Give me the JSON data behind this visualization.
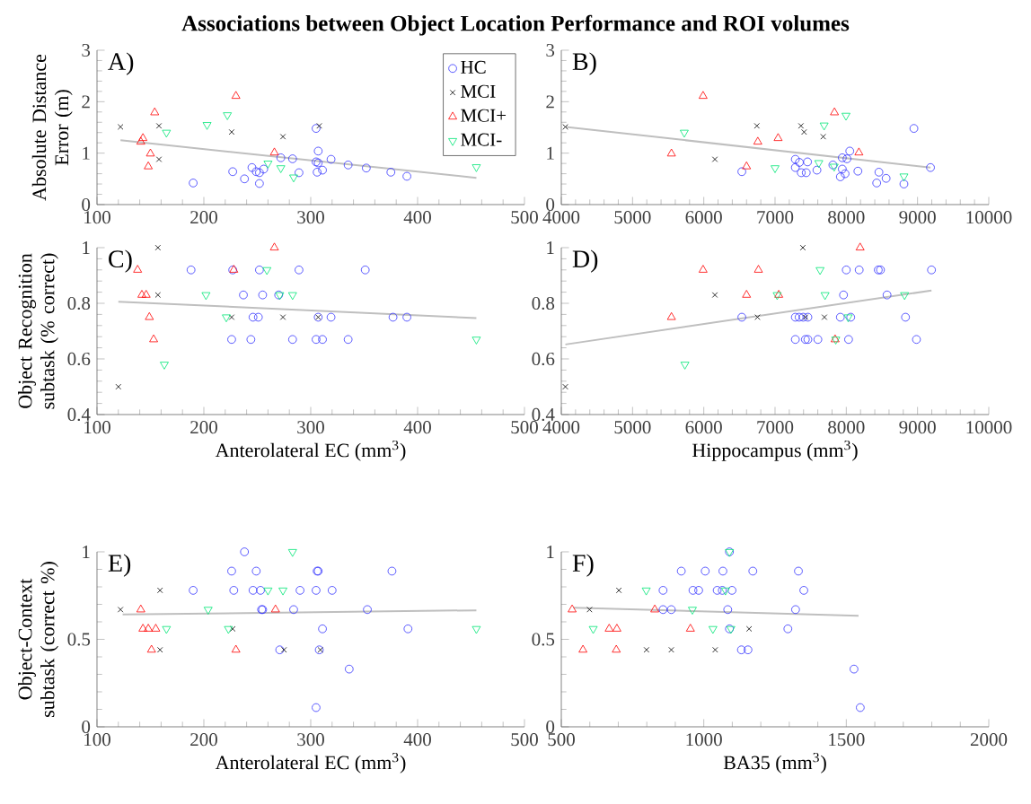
{
  "chart_data": [
    {
      "type": "scatter",
      "title": "Associations between Object Location Performance and ROI volumes",
      "ylabel": "Absolute Distance Error (m)",
      "annotations": [
        "A)"
      ],
      "legend": "top right",
      "xlim": [
        100,
        500
      ],
      "xticks": [
        100,
        200,
        300,
        400,
        500
      ],
      "ylim": [
        0,
        3
      ],
      "yticks": [
        0,
        1,
        2,
        3
      ],
      "series": [
        {
          "name": "HC",
          "color": "#3333ff",
          "marker": "circle",
          "x": [
            190,
            227,
            238,
            245,
            249,
            252,
            252,
            256,
            272,
            283,
            289,
            305,
            307,
            305,
            307,
            306,
            311,
            319,
            335,
            352,
            375,
            390
          ],
          "values": [
            0.42,
            0.64,
            0.5,
            0.72,
            0.64,
            0.41,
            0.62,
            0.69,
            0.91,
            0.89,
            0.62,
            1.48,
            1.04,
            0.83,
            0.81,
            0.63,
            0.67,
            0.88,
            0.77,
            0.71,
            0.63,
            0.55
          ]
        },
        {
          "name": "MCI",
          "color": "#000000",
          "marker": "cross",
          "x": [
            122,
            158,
            158,
            226,
            274,
            308
          ],
          "values": [
            1.51,
            1.53,
            0.88,
            1.41,
            1.32,
            1.53
          ]
        },
        {
          "name": "MCI+",
          "color": "#ff0000",
          "marker": "triangle",
          "x": [
            154,
            143,
            141,
            150,
            148,
            230,
            266
          ],
          "values": [
            1.79,
            1.29,
            1.22,
            0.99,
            0.74,
            2.11,
            1.01
          ]
        },
        {
          "name": "MCI-",
          "color": "#00e676",
          "marker": "triangle down",
          "x": [
            165,
            203,
            222,
            260,
            272,
            284,
            455
          ],
          "values": [
            1.4,
            1.55,
            1.74,
            0.8,
            0.71,
            0.53,
            0.73
          ]
        },
        {
          "type": "line",
          "color": "#bfbfbf",
          "x": [
            122,
            455
          ],
          "values": [
            1.25,
            0.52
          ]
        }
      ]
    },
    {
      "type": "scatter",
      "annotations": [
        "B)"
      ],
      "xlim": [
        4000,
        10000
      ],
      "xticks": [
        4000,
        5000,
        6000,
        7000,
        8000,
        9000,
        10000
      ],
      "ylim": [
        0,
        3
      ],
      "yticks": [
        0,
        1,
        2,
        3
      ],
      "series": [
        {
          "color": "#3333ff",
          "marker": "circle",
          "x": [
            6534,
            7285,
            7285,
            7342,
            7456,
            7368,
            7438,
            7588,
            7812,
            7944,
            8010,
            8049,
            7944,
            7983,
            7917,
            8163,
            8458,
            8427,
            8559,
            8809,
            8949,
            9182
          ],
          "values": [
            0.64,
            0.88,
            0.72,
            0.82,
            0.83,
            0.62,
            0.62,
            0.67,
            0.77,
            0.91,
            0.89,
            1.04,
            0.69,
            0.6,
            0.54,
            0.65,
            0.63,
            0.42,
            0.51,
            0.4,
            1.48,
            0.72
          ]
        },
        {
          "color": "#000000",
          "marker": "cross",
          "x": [
            4057,
            6156,
            6745,
            7364,
            7408,
            7676
          ],
          "values": [
            1.51,
            0.88,
            1.53,
            1.53,
            1.41,
            1.32
          ]
        },
        {
          "color": "#ff0000",
          "marker": "triangle",
          "x": [
            5990,
            5546,
            6600,
            6758,
            7043,
            7834,
            8177
          ],
          "values": [
            2.11,
            0.99,
            0.74,
            1.22,
            1.29,
            1.79,
            1.01
          ]
        },
        {
          "color": "#00e676",
          "marker": "triangle down",
          "x": [
            5726,
            7000,
            7614,
            7689,
            7830,
            7996,
            8809
          ],
          "values": [
            1.4,
            0.71,
            0.81,
            1.54,
            0.74,
            1.73,
            0.55
          ]
        },
        {
          "type": "line",
          "color": "#bfbfbf",
          "x": [
            4066,
            9182
          ],
          "values": [
            1.51,
            0.72
          ]
        }
      ]
    },
    {
      "type": "scatter",
      "xlabel": "Anterolateral EC (mm$^{3}$)",
      "ylabel": "Object Recognition subtask (% correct)",
      "annotations": [
        "C)"
      ],
      "xlim": [
        100,
        500
      ],
      "xticks": [
        100,
        200,
        300,
        400,
        500
      ],
      "ylim": [
        0.4,
        1
      ],
      "yticks": [
        0.4,
        0.6,
        0.8,
        1
      ],
      "series": [
        {
          "color": "#3333ff",
          "marker": "circle",
          "x": [
            188,
            227,
            252,
            289,
            351,
            237,
            255,
            270,
            246,
            251,
            307,
            319,
            377,
            390,
            226,
            244,
            283,
            305,
            311,
            335
          ],
          "values": [
            0.92,
            0.92,
            0.92,
            0.92,
            0.92,
            0.83,
            0.83,
            0.83,
            0.75,
            0.75,
            0.75,
            0.75,
            0.75,
            0.75,
            0.67,
            0.67,
            0.67,
            0.67,
            0.67,
            0.67
          ]
        },
        {
          "color": "#000000",
          "marker": "cross",
          "x": [
            157,
            157,
            226,
            274,
            307,
            120
          ],
          "values": [
            1,
            0.83,
            0.75,
            0.75,
            0.75,
            0.5
          ]
        },
        {
          "color": "#ff0000",
          "marker": "triangle",
          "x": [
            266,
            138,
            228,
            142,
            146,
            149,
            153
          ],
          "values": [
            1,
            0.92,
            0.92,
            0.83,
            0.83,
            0.75,
            0.67
          ]
        },
        {
          "color": "#00e676",
          "marker": "triangle down",
          "x": [
            259,
            202,
            271,
            283,
            221,
            163,
            455
          ],
          "values": [
            0.92,
            0.83,
            0.83,
            0.83,
            0.75,
            0.58,
            0.67
          ]
        },
        {
          "type": "line",
          "color": "#bfbfbf",
          "x": [
            120,
            455
          ],
          "values": [
            0.806,
            0.747
          ]
        }
      ]
    },
    {
      "type": "scatter",
      "xlabel": "Hippocampus (mm$^{3}$)",
      "annotations": [
        "D)"
      ],
      "xlim": [
        4000,
        10000
      ],
      "xticks": [
        4000,
        5000,
        6000,
        7000,
        8000,
        9000,
        10000
      ],
      "ylim": [
        0.4,
        1
      ],
      "yticks": [
        0.4,
        0.6,
        0.8,
        1
      ],
      "series": [
        {
          "color": "#3333ff",
          "marker": "circle",
          "x": [
            8000,
            8181,
            8449,
            8480,
            9196,
            7961,
            8572,
            6534,
            7285,
            7338,
            7395,
            7461,
            7917,
            8062,
            8831,
            7285,
            7426,
            7461,
            7601,
            8032,
            8985
          ],
          "values": [
            0.92,
            0.92,
            0.92,
            0.92,
            0.92,
            0.83,
            0.83,
            0.75,
            0.75,
            0.75,
            0.75,
            0.75,
            0.75,
            0.75,
            0.75,
            0.67,
            0.67,
            0.67,
            0.67,
            0.67,
            0.67
          ]
        },
        {
          "color": "#000000",
          "marker": "cross",
          "x": [
            7390,
            6156,
            6754,
            7426,
            7693,
            4057
          ],
          "values": [
            1,
            0.83,
            0.75,
            0.75,
            0.75,
            0.5
          ]
        },
        {
          "color": "#ff0000",
          "marker": "triangle",
          "x": [
            8194,
            5990,
            6767,
            6600,
            7052,
            5546,
            7843
          ],
          "values": [
            1,
            0.92,
            0.92,
            0.83,
            0.83,
            0.75,
            0.67
          ]
        },
        {
          "color": "#00e676",
          "marker": "triangle down",
          "x": [
            7632,
            7030,
            7702,
            8818,
            8027,
            7852,
            5735
          ],
          "values": [
            0.92,
            0.83,
            0.83,
            0.83,
            0.75,
            0.67,
            0.58
          ]
        },
        {
          "type": "line",
          "color": "#bfbfbf",
          "x": [
            4057,
            9196
          ],
          "values": [
            0.652,
            0.846
          ]
        }
      ]
    },
    {
      "type": "scatter",
      "xlabel": "Anterolateral EC (mm$^{3}$)",
      "ylabel": "Object-Context subtask (correct %)",
      "annotations": [
        "E)"
      ],
      "xlim": [
        100,
        500
      ],
      "xticks": [
        100,
        200,
        300,
        400,
        500
      ],
      "ylim": [
        0,
        1
      ],
      "yticks": [
        0,
        0.5,
        1
      ],
      "series": [
        {
          "color": "#3333ff",
          "marker": "circle",
          "x": [
            238,
            226,
            249,
            306,
            307,
            376,
            190,
            228,
            246,
            253,
            290,
            305,
            320,
            254,
            255,
            284,
            353,
            311,
            391,
            271,
            308,
            336,
            305
          ],
          "values": [
            1,
            0.89,
            0.89,
            0.89,
            0.89,
            0.89,
            0.78,
            0.78,
            0.78,
            0.78,
            0.78,
            0.78,
            0.78,
            0.67,
            0.67,
            0.67,
            0.67,
            0.56,
            0.56,
            0.44,
            0.44,
            0.33,
            0.11
          ]
        },
        {
          "color": "#000000",
          "marker": "cross",
          "x": [
            159,
            122,
            227,
            159,
            275,
            309
          ],
          "values": [
            0.78,
            0.67,
            0.56,
            0.44,
            0.44,
            0.44
          ]
        },
        {
          "color": "#ff0000",
          "marker": "triangle",
          "x": [
            141,
            267,
            143,
            148,
            155,
            151,
            230
          ],
          "values": [
            0.67,
            0.67,
            0.56,
            0.56,
            0.56,
            0.44,
            0.44
          ]
        },
        {
          "color": "#00e676",
          "marker": "triangle down",
          "x": [
            283,
            260,
            274,
            204,
            165,
            223,
            455
          ],
          "values": [
            1,
            0.78,
            0.78,
            0.67,
            0.56,
            0.56,
            0.56
          ]
        },
        {
          "type": "line",
          "color": "#bfbfbf",
          "x": [
            124,
            455
          ],
          "values": [
            0.642,
            0.666
          ]
        }
      ]
    },
    {
      "type": "scatter",
      "xlabel": "BA35 (mm$^{3}$)",
      "annotations": [
        "F)"
      ],
      "xlim": [
        500,
        2000
      ],
      "xticks": [
        500,
        1000,
        1500,
        2000
      ],
      "ylim": [
        0,
        1
      ],
      "yticks": [
        0,
        0.5,
        1
      ],
      "series": [
        {
          "color": "#3333ff",
          "marker": "circle",
          "x": [
            1090,
            921,
            1005,
            1067,
            1172,
            1332,
            857,
            962,
            982,
            1047,
            1065,
            1099,
            1351,
            857,
            886,
            1084,
            1322,
            1090,
            1295,
            1132,
            1155,
            1527,
            1549
          ],
          "values": [
            1,
            0.89,
            0.89,
            0.89,
            0.89,
            0.89,
            0.78,
            0.78,
            0.78,
            0.78,
            0.78,
            0.78,
            0.78,
            0.67,
            0.67,
            0.67,
            0.67,
            0.56,
            0.56,
            0.44,
            0.44,
            0.33,
            0.11
          ]
        },
        {
          "color": "#000000",
          "marker": "cross",
          "x": [
            702,
            599,
            1159,
            799,
            886,
            1040
          ],
          "values": [
            0.78,
            0.67,
            0.56,
            0.44,
            0.44,
            0.44
          ]
        },
        {
          "color": "#ff0000",
          "marker": "triangle",
          "x": [
            538,
            828,
            668,
            695,
            953,
            576,
            693
          ],
          "values": [
            0.67,
            0.67,
            0.56,
            0.56,
            0.56,
            0.44,
            0.44
          ]
        },
        {
          "color": "#00e676",
          "marker": "triangle down",
          "x": [
            1090,
            798,
            1076,
            960,
            612,
            1032,
            1095
          ],
          "values": [
            1,
            0.78,
            0.78,
            0.67,
            0.56,
            0.56,
            0.56
          ]
        },
        {
          "type": "line",
          "color": "#bfbfbf",
          "x": [
            543,
            1543
          ],
          "values": [
            0.681,
            0.634
          ]
        }
      ]
    }
  ]
}
